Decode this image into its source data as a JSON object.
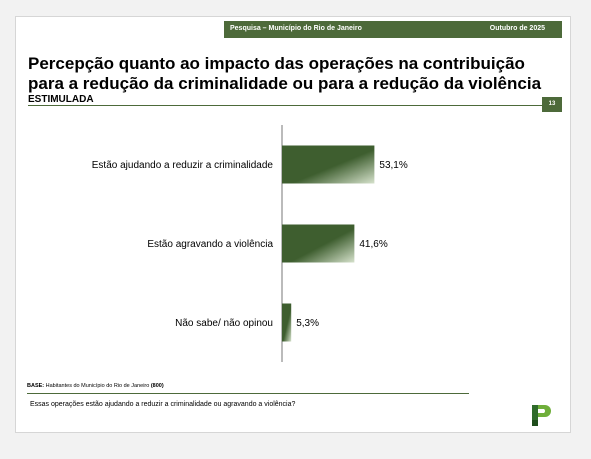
{
  "header": {
    "left": "Pesquisa – Município do Rio de Janeiro",
    "right": "Outubro de 2025"
  },
  "title": "Percepção quanto ao impacto das operações na contribuição para a redução da criminalidade ou para a redução da violência",
  "subtitle": "ESTIMULADA",
  "page_number": "13",
  "footer": {
    "base_label": "BASE:",
    "base_text": "Habitantes do Município do Rio de Janeiro",
    "base_count": "(800)",
    "question": "Essas operações estão ajudando a reduzir a criminalidade ou agravando a violência?"
  },
  "colors": {
    "bar_dark": "#3e5e2f",
    "bar_light": "#d6e2cc",
    "accent": "#4d6a3a"
  },
  "chart_data": {
    "type": "bar",
    "orientation": "horizontal",
    "categories": [
      "Estão ajudando a reduzir a criminalidade",
      "Estão agravando a violência",
      "Não sabe/ não opinou"
    ],
    "values": [
      53.1,
      41.6,
      5.3
    ],
    "value_labels": [
      "53,1%",
      "41,6%",
      "5,3%"
    ],
    "unit": "%",
    "xlim": [
      0,
      100
    ],
    "grid": false,
    "legend": "none"
  },
  "logo": {
    "icon": "pp-logo-icon"
  }
}
